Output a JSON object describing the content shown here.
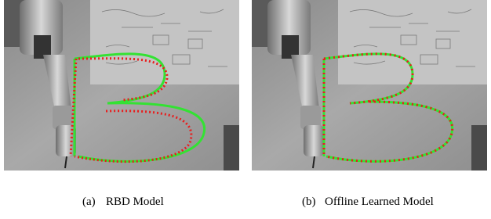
{
  "figure": {
    "panels": [
      {
        "label": "(a)",
        "caption": "RBD Model"
      },
      {
        "label": "(b)",
        "caption": "Offline Learned Model"
      }
    ]
  }
}
